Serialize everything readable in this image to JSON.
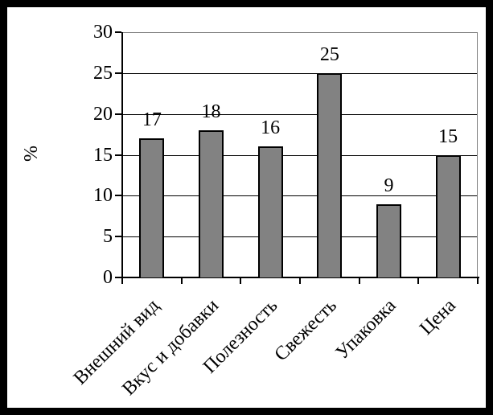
{
  "chart_data": {
    "type": "bar",
    "title": "",
    "categories": [
      "Внешний вид",
      "Вкус и добавки",
      "Полезность",
      "Свежесть",
      "Упаковка",
      "Цена"
    ],
    "values": [
      17,
      18,
      16,
      25,
      9,
      15
    ],
    "data_labels": [
      "17",
      "18",
      "16",
      "25",
      "9",
      "15"
    ],
    "ylabel": "%",
    "xlabel": "",
    "ylim": [
      0,
      30
    ],
    "yticks": [
      "0",
      "5",
      "10",
      "15",
      "20",
      "25",
      "30"
    ],
    "ytick_values": [
      0,
      5,
      10,
      15,
      20,
      25,
      30
    ],
    "grid": true,
    "legend": false,
    "colors": {
      "bar_fill": "#828282",
      "bar_border": "#000000",
      "gridline": "#000000",
      "axis": "#000000",
      "plot_border": "#808080",
      "frame": "#000000",
      "background": "#ffffff",
      "text": "#000000"
    }
  }
}
